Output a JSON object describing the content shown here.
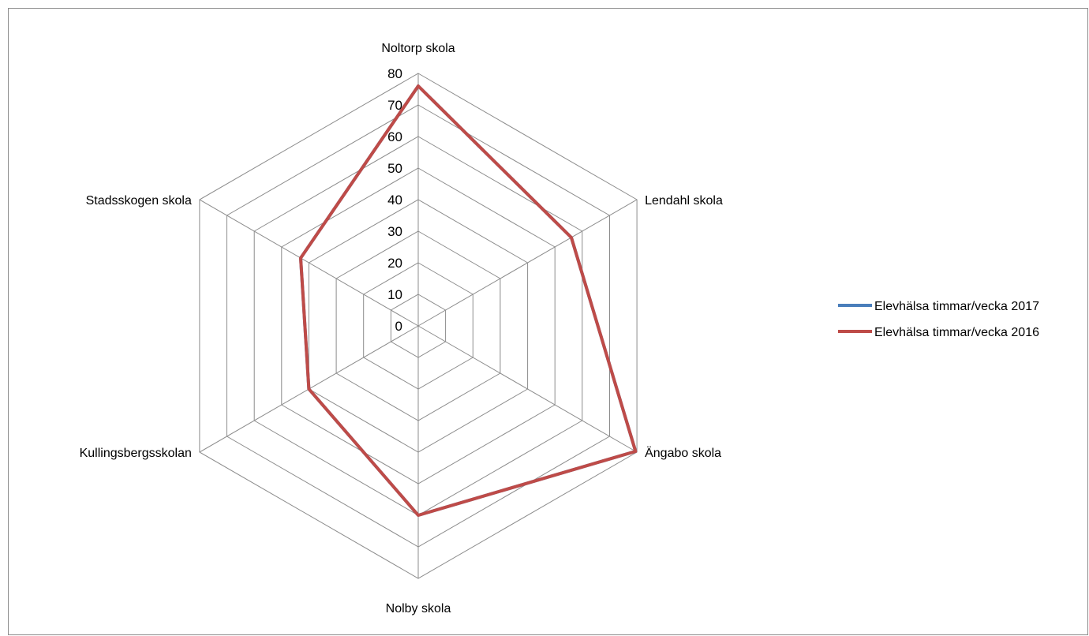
{
  "chart_data": {
    "type": "radar",
    "categories": [
      "Noltorp skola",
      "Lendahl skola",
      "Ängabo skola",
      "Nolby skola",
      "Kullingsbergsskolan",
      "Stadsskogen skola"
    ],
    "series": [
      {
        "name": "Elevhälsa timmar/vecka 2017",
        "color": "#4a7ebb",
        "values": [
          76,
          56,
          79.5,
          60,
          40,
          43
        ]
      },
      {
        "name": "Elevhälsa timmar/vecka 2016",
        "color": "#be4b48",
        "values": [
          76,
          56,
          79.5,
          60,
          40,
          43
        ]
      }
    ],
    "rlim": [
      0,
      80
    ],
    "ticks": [
      "0",
      "10",
      "20",
      "30",
      "40",
      "50",
      "60",
      "70",
      "80"
    ],
    "grid": true,
    "grid_color": "#8c8c8c",
    "legend_position": "right"
  }
}
